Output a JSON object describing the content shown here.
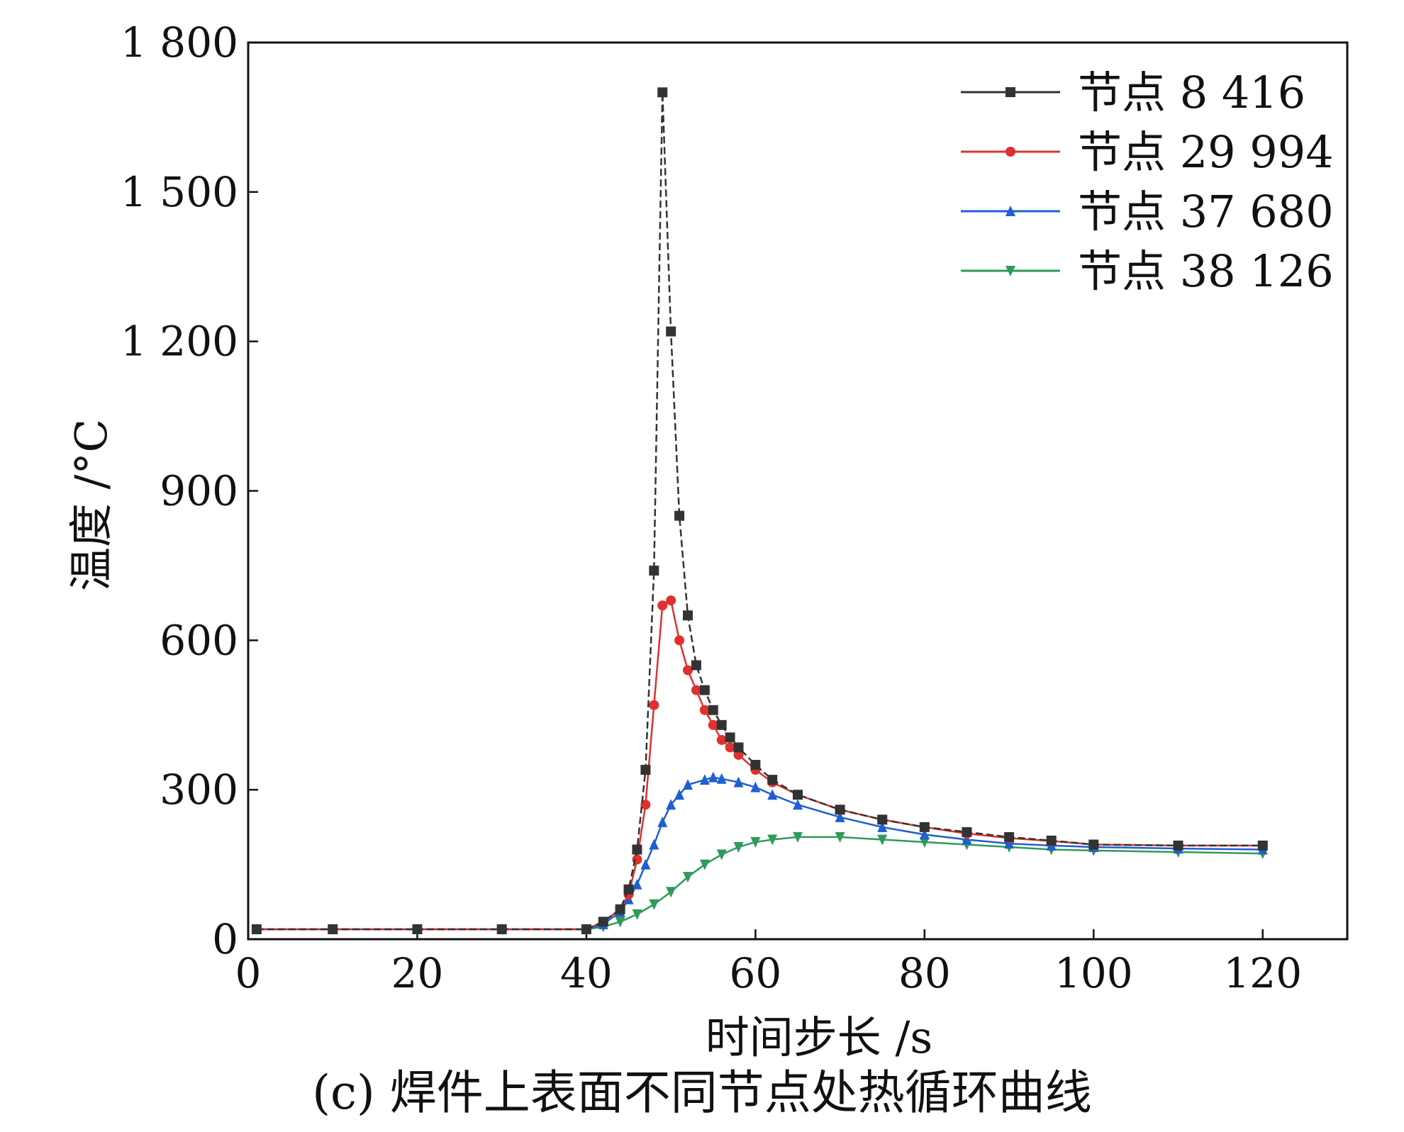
{
  "caption": "(c) 焊件上表面不同节点处热循环曲线",
  "chart_data": {
    "type": "line",
    "xlabel": "时间步长 /s",
    "ylabel": "温度 /°C",
    "xlim": [
      0,
      130
    ],
    "ylim": [
      0,
      1800
    ],
    "xticks": [
      0,
      20,
      40,
      60,
      80,
      100,
      120
    ],
    "yticks": [
      0,
      300,
      600,
      900,
      1200,
      1500,
      1800
    ],
    "xtick_labels": [
      "0",
      "20",
      "40",
      "60",
      "80",
      100,
      "120"
    ],
    "ytick_labels": [
      "0",
      "300",
      "600",
      "900",
      "1 200",
      "1 500",
      "1 800"
    ],
    "grid": false,
    "legend_position": "top-right",
    "series": [
      {
        "name": "节点 8 416",
        "color": "#333333",
        "marker": "square",
        "x": [
          1,
          10,
          20,
          30,
          40,
          42,
          44,
          45,
          46,
          47,
          48,
          49,
          50,
          51,
          52,
          53,
          54,
          55,
          56,
          57,
          58,
          60,
          62,
          65,
          70,
          75,
          80,
          85,
          90,
          95,
          100,
          110,
          120
        ],
        "y": [
          20,
          20,
          20,
          20,
          20,
          35,
          60,
          100,
          180,
          340,
          740,
          1700,
          1220,
          850,
          650,
          550,
          500,
          460,
          430,
          405,
          385,
          350,
          320,
          290,
          260,
          240,
          225,
          215,
          205,
          198,
          190,
          188,
          188
        ]
      },
      {
        "name": "节点 29 994",
        "color": "#e03030",
        "marker": "circle",
        "x": [
          1,
          10,
          20,
          30,
          40,
          42,
          44,
          45,
          46,
          47,
          48,
          49,
          50,
          51,
          52,
          53,
          54,
          55,
          56,
          57,
          58,
          60,
          62,
          65,
          70,
          75,
          80,
          85,
          90,
          95,
          100,
          110,
          120
        ],
        "y": [
          20,
          20,
          20,
          20,
          20,
          35,
          60,
          90,
          160,
          270,
          470,
          670,
          680,
          600,
          540,
          500,
          460,
          430,
          400,
          385,
          370,
          340,
          315,
          290,
          260,
          240,
          225,
          212,
          203,
          197,
          190,
          188,
          188
        ]
      },
      {
        "name": "节点 37 680",
        "color": "#1f5fd0",
        "marker": "triangle-up",
        "x": [
          1,
          10,
          20,
          30,
          40,
          42,
          44,
          45,
          46,
          47,
          48,
          49,
          50,
          51,
          52,
          54,
          55,
          56,
          58,
          60,
          62,
          65,
          70,
          75,
          80,
          85,
          90,
          95,
          100,
          110,
          120
        ],
        "y": [
          20,
          20,
          20,
          20,
          20,
          30,
          55,
          80,
          110,
          150,
          190,
          235,
          270,
          290,
          310,
          320,
          325,
          322,
          315,
          305,
          290,
          270,
          245,
          225,
          210,
          200,
          192,
          188,
          185,
          182,
          180
        ]
      },
      {
        "name": "节点 38 126",
        "color": "#2f9a5a",
        "marker": "triangle-down",
        "x": [
          1,
          10,
          20,
          30,
          40,
          42,
          44,
          46,
          48,
          50,
          52,
          54,
          56,
          58,
          60,
          62,
          65,
          70,
          75,
          80,
          85,
          90,
          95,
          100,
          110,
          120
        ],
        "y": [
          20,
          20,
          20,
          20,
          20,
          25,
          35,
          50,
          70,
          95,
          125,
          150,
          170,
          185,
          195,
          200,
          205,
          205,
          200,
          195,
          190,
          185,
          180,
          178,
          175,
          172
        ]
      }
    ]
  }
}
